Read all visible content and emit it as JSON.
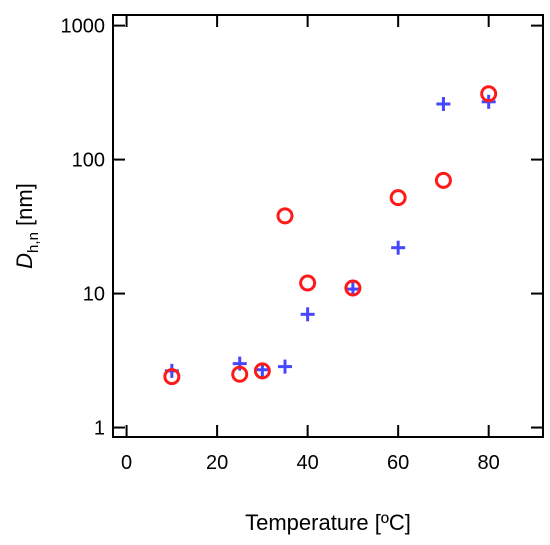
{
  "chart_data": {
    "type": "scatter",
    "title": "",
    "xlabel": "Temperature [ºC]",
    "ylabel": {
      "main": "D",
      "sub": "h,n",
      "unit": " [nm]"
    },
    "xlim": [
      -3,
      92
    ],
    "ylim": [
      0.85,
      1200
    ],
    "yscale": "log",
    "xticks": [
      0,
      20,
      40,
      60,
      80
    ],
    "xtick_labels": [
      "0",
      "20",
      "40",
      "60",
      "80"
    ],
    "yticks": [
      1,
      10,
      100,
      1000
    ],
    "ytick_labels": [
      "1",
      "10",
      "100",
      "1000"
    ],
    "grid": false,
    "legend": "none",
    "series": [
      {
        "marker": "circle",
        "color": "#ff1a1a",
        "points": [
          {
            "x": 10,
            "y": 2.4
          },
          {
            "x": 25,
            "y": 2.5
          },
          {
            "x": 30,
            "y": 2.65
          },
          {
            "x": 35,
            "y": 38
          },
          {
            "x": 40,
            "y": 12
          },
          {
            "x": 50,
            "y": 11
          },
          {
            "x": 60,
            "y": 52
          },
          {
            "x": 70,
            "y": 70
          },
          {
            "x": 80,
            "y": 310
          }
        ]
      },
      {
        "marker": "plus",
        "color": "#4646ff",
        "points": [
          {
            "x": 10,
            "y": 2.65
          },
          {
            "x": 25,
            "y": 3.0
          },
          {
            "x": 30,
            "y": 2.7
          },
          {
            "x": 35,
            "y": 2.85
          },
          {
            "x": 40,
            "y": 7.0
          },
          {
            "x": 50,
            "y": 10.8
          },
          {
            "x": 60,
            "y": 22
          },
          {
            "x": 70,
            "y": 260
          },
          {
            "x": 80,
            "y": 270
          }
        ]
      }
    ]
  }
}
